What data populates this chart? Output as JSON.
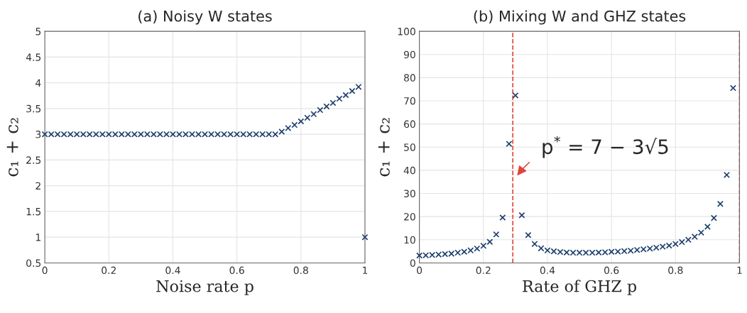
{
  "chart_data": [
    {
      "type": "scatter",
      "title": "(a) Noisy W states",
      "xlabel": "Noise rate p",
      "ylabel": "c₁ + c₂",
      "xlim": [
        0,
        1
      ],
      "xticks": [
        0,
        0.2,
        0.4,
        0.6,
        0.8,
        1
      ],
      "ylim": [
        0.5,
        5
      ],
      "yticks": [
        0.5,
        1,
        1.5,
        2,
        2.5,
        3,
        3.5,
        4,
        4.5,
        5
      ],
      "grid": true,
      "marker": "cross",
      "series": [
        {
          "color": "#1f3f6e",
          "x": [
            0,
            0.02,
            0.04,
            0.06,
            0.08,
            0.1,
            0.12,
            0.14,
            0.16,
            0.18,
            0.2,
            0.22,
            0.24,
            0.26,
            0.28,
            0.3,
            0.32,
            0.34,
            0.36,
            0.38,
            0.4,
            0.42,
            0.44,
            0.46,
            0.48,
            0.5,
            0.52,
            0.54,
            0.56,
            0.58,
            0.6,
            0.62,
            0.64,
            0.66,
            0.68,
            0.7,
            0.72,
            0.74,
            0.76,
            0.78,
            0.8,
            0.82,
            0.84,
            0.86,
            0.88,
            0.9,
            0.92,
            0.94,
            0.96,
            0.98,
            1
          ],
          "values": [
            3,
            3,
            3,
            3,
            3,
            3,
            3,
            3,
            3,
            3,
            3,
            3,
            3,
            3,
            3,
            3,
            3,
            3,
            3,
            3,
            3,
            3,
            3,
            3,
            3,
            3,
            3,
            3,
            3,
            3,
            3,
            3,
            3,
            3,
            3,
            3,
            3,
            3.05,
            3.12,
            3.18,
            3.25,
            3.32,
            3.39,
            3.47,
            3.54,
            3.61,
            3.69,
            3.76,
            3.84,
            3.92,
            1
          ]
        }
      ]
    },
    {
      "type": "scatter",
      "title": "(b) Mixing W and GHZ states",
      "xlabel": "Rate of GHZ p",
      "ylabel": "c₁ + c₂",
      "xlim": [
        0,
        1
      ],
      "xticks": [
        0,
        0.2,
        0.4,
        0.6,
        0.8,
        1
      ],
      "ylim": [
        0,
        100
      ],
      "yticks": [
        0,
        10,
        20,
        30,
        40,
        50,
        60,
        70,
        80,
        90,
        100
      ],
      "grid": true,
      "marker": "cross",
      "series": [
        {
          "color": "#1f3f6e",
          "x": [
            0,
            0.02,
            0.04,
            0.06,
            0.08,
            0.1,
            0.12,
            0.14,
            0.16,
            0.18,
            0.2,
            0.22,
            0.24,
            0.26,
            0.28,
            0.3,
            0.32,
            0.34,
            0.36,
            0.38,
            0.4,
            0.42,
            0.44,
            0.46,
            0.48,
            0.5,
            0.52,
            0.54,
            0.56,
            0.58,
            0.6,
            0.62,
            0.64,
            0.66,
            0.68,
            0.7,
            0.72,
            0.74,
            0.76,
            0.78,
            0.8,
            0.82,
            0.84,
            0.86,
            0.88,
            0.9,
            0.92,
            0.94,
            0.96,
            0.98
          ],
          "values": [
            3.2,
            3.3,
            3.4,
            3.6,
            3.8,
            4.0,
            4.4,
            4.8,
            5.4,
            6.2,
            7.4,
            9.1,
            12.3,
            19.6,
            51.4,
            72.3,
            20.6,
            12,
            8.2,
            6.3,
            5.4,
            5.0,
            4.7,
            4.5,
            4.4,
            4.4,
            4.4,
            4.4,
            4.5,
            4.6,
            4.8,
            4.9,
            5.1,
            5.3,
            5.6,
            5.9,
            6.2,
            6.6,
            7.0,
            7.5,
            8.2,
            9.0,
            10.0,
            11.3,
            13.1,
            15.6,
            19.4,
            25.5,
            38.0,
            75.5
          ]
        }
      ],
      "ref_lines": [
        {
          "axis": "x",
          "value": 0.2918,
          "color": "#e0443a",
          "line_style": "dashed"
        },
        {
          "axis": "x",
          "value": 1,
          "color": "#e0443a",
          "line_style": "dashed"
        }
      ],
      "annotations": [
        {
          "text": "p$^{*}$ = 7 − 3√5",
          "x": 0.2918,
          "y": 37
        }
      ]
    }
  ]
}
